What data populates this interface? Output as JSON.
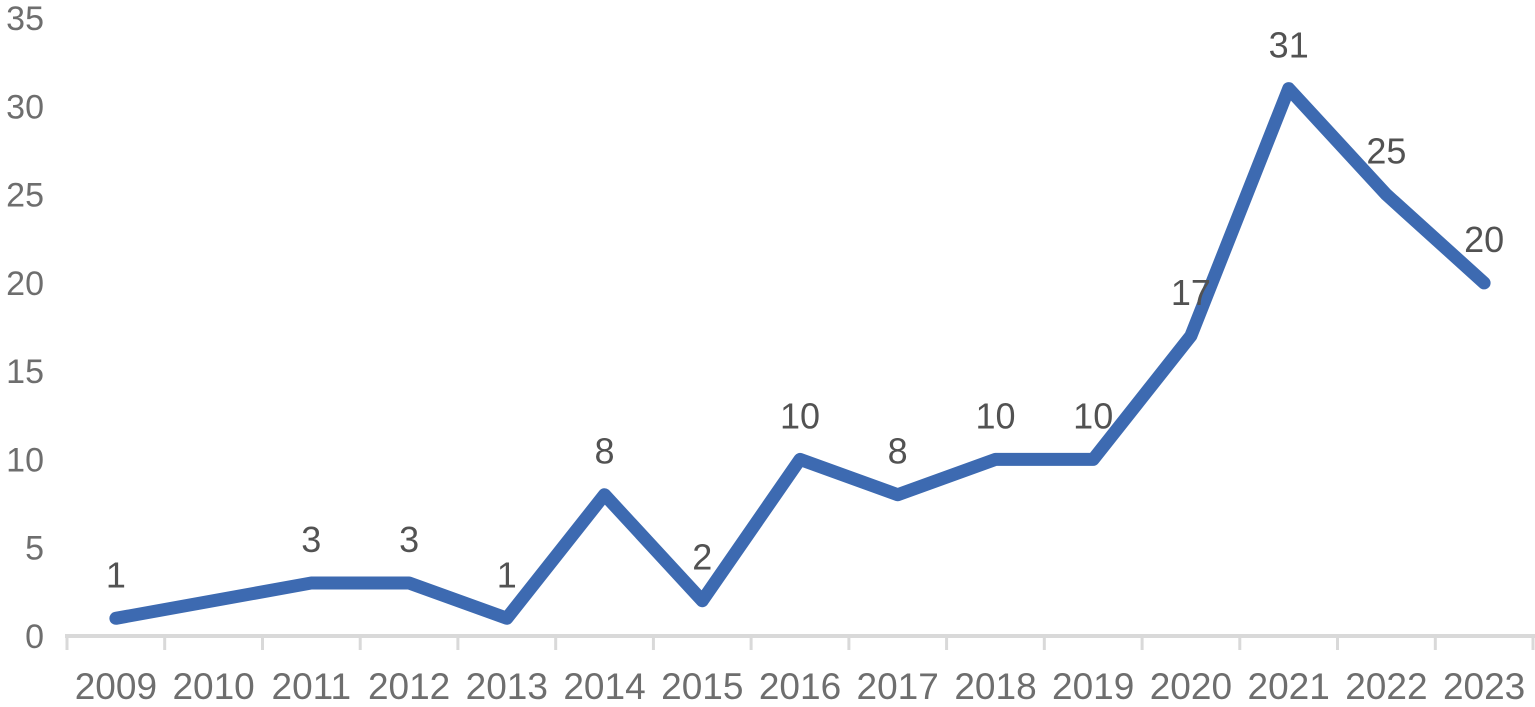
{
  "chart_data": {
    "type": "line",
    "categories": [
      "2009",
      "2010",
      "2011",
      "2012",
      "2013",
      "2014",
      "2015",
      "2016",
      "2017",
      "2018",
      "2019",
      "2020",
      "2021",
      "2022",
      "2023"
    ],
    "values": [
      1,
      null,
      3,
      3,
      1,
      8,
      2,
      10,
      8,
      10,
      10,
      17,
      31,
      25,
      20
    ],
    "title": "",
    "xlabel": "",
    "ylabel": "",
    "ylim": [
      0,
      35
    ],
    "ytick_step": 5,
    "yticks": [
      0,
      5,
      10,
      15,
      20,
      25,
      30,
      35
    ],
    "grid": false,
    "legend": false,
    "data_labels_shown": true,
    "colors": {
      "line": "#3D6AB1",
      "axis_line": "#D9D9D9",
      "axis_label": "#6E6E6E",
      "data_label": "#525252"
    }
  }
}
